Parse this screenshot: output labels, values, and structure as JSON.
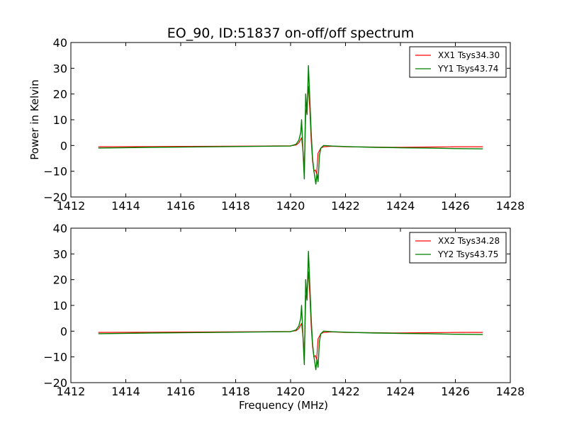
{
  "figure": {
    "title": "EO_90, ID:51837 on-off/off spectrum"
  },
  "chart_data": [
    {
      "type": "line",
      "title": "EO_90, ID:51837 on-off/off spectrum",
      "xlabel": "",
      "ylabel": "Power in Kelvin",
      "xlim": [
        1412,
        1428
      ],
      "ylim": [
        -20,
        40
      ],
      "xticks": [
        "1412",
        "1414",
        "1416",
        "1418",
        "1420",
        "1422",
        "1424",
        "1426",
        "1428"
      ],
      "yticks": [
        "40",
        "30",
        "20",
        "10",
        "0",
        "−10",
        "−20"
      ],
      "grid": false,
      "legend_position": "top-right",
      "series": [
        {
          "name": "XX1 Tsys34.30",
          "color": "#ff0000",
          "x": [
            1413.0,
            1415.0,
            1417.0,
            1419.0,
            1420.0,
            1420.2,
            1420.3,
            1420.4,
            1420.45,
            1420.5,
            1420.55,
            1420.6,
            1420.65,
            1420.7,
            1420.75,
            1420.8,
            1420.85,
            1420.9,
            1420.95,
            1421.0,
            1421.1,
            1421.2,
            1421.5,
            1422.0,
            1423.0,
            1423.7,
            1424.0,
            1425.0,
            1426.0,
            1427.0
          ],
          "y": [
            -0.5,
            -0.4,
            -0.3,
            -0.2,
            -0.1,
            0.2,
            1.0,
            3.0,
            -2.0,
            -9.0,
            12.0,
            16.0,
            23.0,
            14.0,
            2.0,
            -6.0,
            -10.0,
            -9.5,
            -11.0,
            -3.0,
            -1.0,
            -0.5,
            -0.3,
            -0.5,
            -0.6,
            -0.7,
            -0.7,
            -0.6,
            -0.5,
            -0.5
          ]
        },
        {
          "name": "YY1 Tsys43.74",
          "color": "#008000",
          "x": [
            1413.0,
            1415.0,
            1417.0,
            1419.0,
            1420.0,
            1420.2,
            1420.3,
            1420.37,
            1420.4,
            1420.45,
            1420.5,
            1420.55,
            1420.6,
            1420.65,
            1420.7,
            1420.75,
            1420.8,
            1420.85,
            1420.88,
            1420.92,
            1420.96,
            1421.0,
            1421.05,
            1421.1,
            1421.2,
            1421.5,
            1422.0,
            1423.0,
            1423.7,
            1424.0,
            1425.0,
            1426.0,
            1427.0
          ],
          "y": [
            -1.0,
            -0.7,
            -0.5,
            -0.3,
            -0.2,
            0.5,
            2.0,
            5.0,
            10.0,
            -2.0,
            -13.0,
            20.0,
            12.0,
            31.0,
            18.0,
            5.0,
            -5.0,
            -10.0,
            -12.0,
            -15.0,
            -11.0,
            -14.0,
            -4.0,
            -1.0,
            0.0,
            -0.2,
            -0.4,
            -0.7,
            -0.8,
            -0.9,
            -1.0,
            -1.2,
            -1.3
          ]
        }
      ]
    },
    {
      "type": "line",
      "title": "",
      "xlabel": "Frequency (MHz)",
      "ylabel": "",
      "xlim": [
        1412,
        1428
      ],
      "ylim": [
        -20,
        40
      ],
      "xticks": [
        "1412",
        "1414",
        "1416",
        "1418",
        "1420",
        "1422",
        "1424",
        "1426",
        "1428"
      ],
      "yticks": [
        "40",
        "30",
        "20",
        "10",
        "0",
        "−10",
        "−20"
      ],
      "grid": false,
      "legend_position": "top-right",
      "series": [
        {
          "name": "XX2 Tsys34.28",
          "color": "#ff0000",
          "x": [
            1413.0,
            1415.0,
            1417.0,
            1419.0,
            1420.0,
            1420.2,
            1420.3,
            1420.4,
            1420.45,
            1420.5,
            1420.55,
            1420.6,
            1420.65,
            1420.7,
            1420.75,
            1420.8,
            1420.85,
            1420.9,
            1420.95,
            1421.0,
            1421.1,
            1421.2,
            1421.5,
            1422.0,
            1423.0,
            1423.7,
            1424.0,
            1425.0,
            1426.0,
            1427.0
          ],
          "y": [
            -0.5,
            -0.4,
            -0.3,
            -0.2,
            -0.1,
            0.2,
            1.0,
            3.0,
            -2.0,
            -9.0,
            12.0,
            16.0,
            23.0,
            14.0,
            2.0,
            -6.0,
            -10.0,
            -9.5,
            -11.0,
            -3.0,
            -1.0,
            -0.5,
            -0.3,
            -0.5,
            -0.6,
            -0.7,
            -0.7,
            -0.6,
            -0.5,
            -0.5
          ]
        },
        {
          "name": "YY2 Tsys43.75",
          "color": "#008000",
          "x": [
            1413.0,
            1415.0,
            1417.0,
            1419.0,
            1420.0,
            1420.2,
            1420.3,
            1420.37,
            1420.4,
            1420.45,
            1420.5,
            1420.55,
            1420.6,
            1420.65,
            1420.7,
            1420.75,
            1420.8,
            1420.85,
            1420.88,
            1420.92,
            1420.96,
            1421.0,
            1421.05,
            1421.1,
            1421.2,
            1421.5,
            1422.0,
            1423.0,
            1423.7,
            1424.0,
            1425.0,
            1426.0,
            1427.0
          ],
          "y": [
            -1.0,
            -0.7,
            -0.5,
            -0.3,
            -0.2,
            0.5,
            2.0,
            5.0,
            10.0,
            -2.0,
            -13.0,
            20.0,
            12.0,
            31.0,
            18.0,
            5.0,
            -5.0,
            -10.0,
            -12.0,
            -15.0,
            -11.0,
            -14.0,
            -4.0,
            -1.0,
            0.0,
            -0.2,
            -0.4,
            -0.7,
            -0.8,
            -0.9,
            -1.0,
            -1.2,
            -1.3
          ]
        }
      ]
    }
  ]
}
